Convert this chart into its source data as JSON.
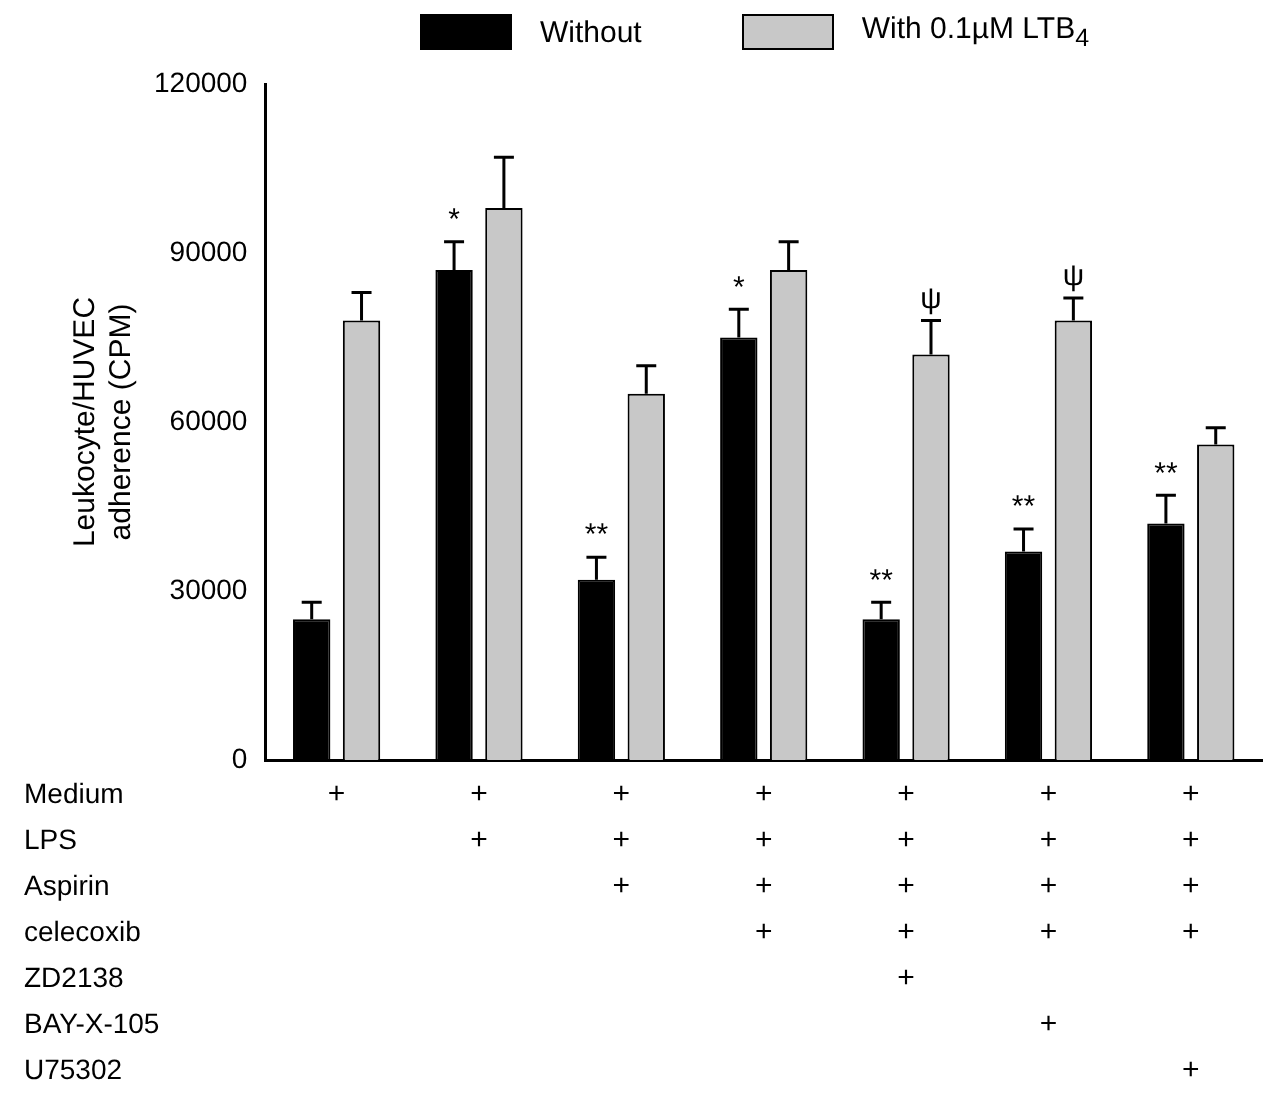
{
  "chart_data": {
    "type": "bar",
    "ylabel": "Leukocyte/HUVEC\nadherence (CPM)",
    "categories": [
      "+\n\n\n\n\n\n",
      "+\n+\n\n\n\n\n",
      "+\n+\n+\n\n\n\n",
      "+\n+\n+\n+\n\n\n",
      "+\n+\n+\n+\n+\n\n",
      "+\n+\n+\n+\n\n+\n",
      "+\n+\n+\n+\n\n\n+"
    ],
    "series": [
      {
        "name": "Without",
        "color": "#000000",
        "values": [
          25000,
          87000,
          32000,
          75000,
          25000,
          37000,
          42000
        ],
        "errors": [
          [
            25000,
            28000
          ],
          [
            87000,
            92000
          ],
          [
            32000,
            36000
          ],
          [
            75000,
            80000
          ],
          [
            25000,
            28000
          ],
          [
            37000,
            41000
          ],
          [
            42000,
            47000
          ]
        ],
        "value_labels": [
          null,
          "*",
          "**",
          "*",
          "**",
          "**",
          "**"
        ]
      },
      {
        "name": "With  0.1µM LTB$_{4}$",
        "color": "#c8c8c8",
        "values": [
          78000,
          98000,
          65000,
          87000,
          72000,
          78000,
          56000
        ],
        "errors": [
          [
            78000,
            83000
          ],
          [
            98000,
            107000
          ],
          [
            65000,
            70000
          ],
          [
            87000,
            92000
          ],
          [
            72000,
            78000
          ],
          [
            78000,
            82000
          ],
          [
            56000,
            59000
          ]
        ],
        "value_labels": [
          null,
          null,
          null,
          null,
          "ψ",
          "ψ",
          null
        ]
      }
    ],
    "ylim": [
      0,
      120000
    ],
    "yticks": [
      0,
      30000,
      60000,
      90000,
      120000
    ],
    "grid": false,
    "legend": "top",
    "annotations": [
      "Medium",
      "LPS",
      "Aspirin",
      "celecoxib",
      "ZD2138",
      "BAY-X-105",
      "U75302"
    ]
  }
}
